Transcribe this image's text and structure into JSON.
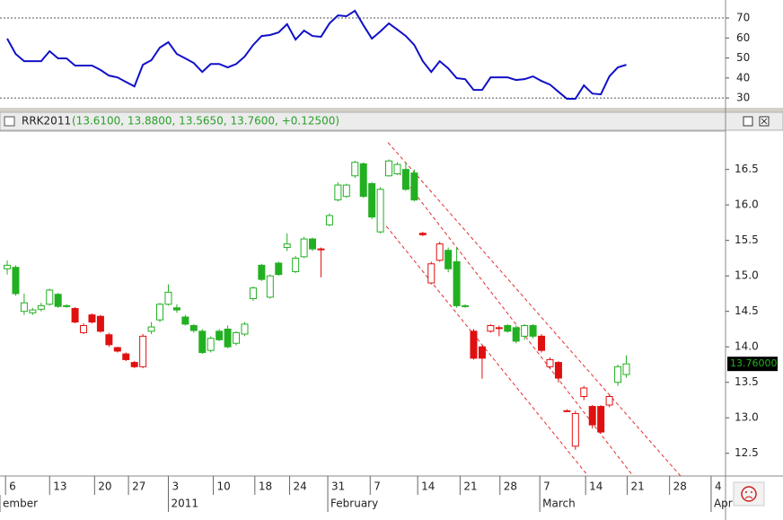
{
  "chart_data": [
    {
      "type": "line",
      "color": "#1010c8",
      "ylim": [
        25.1,
        79
      ],
      "yticks": [
        70,
        60,
        50,
        40,
        30
      ],
      "levels": [
        70,
        30
      ],
      "values": [
        59.7,
        52,
        48.4,
        48.4,
        48.4,
        53.4,
        49.8,
        49.8,
        46.2,
        46.2,
        46.2,
        44,
        41.2,
        40.3,
        38,
        35.8,
        46.6,
        48.9,
        55.2,
        57.9,
        52,
        49.8,
        47.5,
        43,
        47,
        47,
        45.3,
        47,
        50.7,
        56.5,
        61,
        61.5,
        62.8,
        66.9,
        59.2,
        63.7,
        61,
        60.6,
        67.3,
        71.3,
        70.9,
        73.6,
        66.4,
        59.7,
        63.3,
        67.3,
        64.2,
        61,
        56.5,
        48.4,
        43,
        48.4,
        44.8,
        39.9,
        39.4,
        34,
        34,
        40.3,
        40.3,
        40.3,
        39,
        39.4,
        40.8,
        38.5,
        36.7,
        33.1,
        29.6,
        29.6,
        36.3,
        32.2,
        31.8,
        40.8,
        45.3,
        46.6
      ]
    },
    {
      "type": "candlestick",
      "title": "RRK2011",
      "subtitle": "(13.6100, 13.8800, 13.5650, 13.7600, +0.12500)",
      "last_label": "13.76000",
      "colors": {
        "green": "#22b022",
        "red": "#e01010"
      },
      "channel_color": "#e03030",
      "xlim": [
        -0.85,
        84.7
      ],
      "ylim": [
        12.18,
        17.04
      ],
      "yticks": [
        16.5,
        {
          "value": 16,
          "label": "16.0"
        },
        15.5,
        {
          "value": 15,
          "label": "15.0"
        },
        14.5,
        {
          "value": 14,
          "label": "14.0"
        },
        13.5,
        {
          "value": 13,
          "label": "13.0"
        },
        12.5
      ],
      "xticks": [
        {
          "value": -0.2,
          "label": "6"
        },
        {
          "value": 5,
          "label": "13"
        },
        {
          "value": 10.3,
          "label": "20"
        },
        {
          "value": 14.3,
          "label": "27"
        },
        {
          "value": 19,
          "label": "3"
        },
        {
          "value": 24.3,
          "label": "10"
        },
        {
          "value": 29.2,
          "label": "18"
        },
        {
          "value": 33.3,
          "label": "24"
        },
        {
          "value": 37.8,
          "label": "31"
        },
        {
          "value": 42.8,
          "label": "7"
        },
        {
          "value": 48.4,
          "label": "14"
        },
        {
          "value": 53.4,
          "label": "21"
        },
        {
          "value": 58.1,
          "label": "28"
        },
        {
          "value": 62.8,
          "label": "7"
        },
        {
          "value": 68.2,
          "label": "14"
        },
        {
          "value": 73.1,
          "label": "21"
        },
        {
          "value": 78.1,
          "label": "28"
        },
        {
          "value": 83,
          "label": "4"
        }
      ],
      "month_labels": [
        {
          "value": -0.85,
          "label": "ember"
        },
        {
          "value": 19,
          "label": "2011"
        },
        {
          "value": 37.8,
          "label": "February"
        },
        {
          "value": 62.8,
          "label": "March"
        },
        {
          "value": 83,
          "label": "Apr"
        }
      ],
      "channel": [
        {
          "x1": 44.9,
          "y1": 16.88,
          "x2": 79.4,
          "y2": 12.18
        },
        {
          "x1": 45.7,
          "y1": 16.53,
          "x2": 73.8,
          "y2": 12.18
        },
        {
          "x1": 44.7,
          "y1": 15.7,
          "x2": 68.5,
          "y2": 12.18
        }
      ],
      "candles": [
        {
          "o": 15.1,
          "h": 15.22,
          "l": 15.02,
          "c": 15.15,
          "color": "green"
        },
        {
          "o": 15.12,
          "h": 15.15,
          "l": 14.72,
          "c": 14.75,
          "color": "green"
        },
        {
          "o": 14.5,
          "h": 14.75,
          "l": 14.45,
          "c": 14.62,
          "color": "green"
        },
        {
          "o": 14.48,
          "h": 14.55,
          "l": 14.45,
          "c": 14.52,
          "color": "green"
        },
        {
          "o": 14.53,
          "h": 14.62,
          "l": 14.5,
          "c": 14.58,
          "color": "green"
        },
        {
          "o": 14.6,
          "h": 14.82,
          "l": 14.58,
          "c": 14.8,
          "color": "green"
        },
        {
          "o": 14.74,
          "h": 14.76,
          "l": 14.55,
          "c": 14.57,
          "color": "green"
        },
        {
          "o": 14.58,
          "h": 14.6,
          "l": 14.55,
          "c": 14.57,
          "color": "green"
        },
        {
          "o": 14.54,
          "h": 14.56,
          "l": 14.33,
          "c": 14.35,
          "color": "red"
        },
        {
          "o": 14.2,
          "h": 14.33,
          "l": 14.18,
          "c": 14.3,
          "color": "red"
        },
        {
          "o": 14.45,
          "h": 14.47,
          "l": 14.33,
          "c": 14.35,
          "color": "red"
        },
        {
          "o": 14.43,
          "h": 14.45,
          "l": 14.2,
          "c": 14.22,
          "color": "red"
        },
        {
          "o": 14.17,
          "h": 14.2,
          "l": 14.0,
          "c": 14.03,
          "color": "red"
        },
        {
          "o": 13.99,
          "h": 14.0,
          "l": 13.92,
          "c": 13.94,
          "color": "red"
        },
        {
          "o": 13.9,
          "h": 13.92,
          "l": 13.8,
          "c": 13.82,
          "color": "red"
        },
        {
          "o": 13.78,
          "h": 13.8,
          "l": 13.7,
          "c": 13.72,
          "color": "red"
        },
        {
          "o": 13.72,
          "h": 14.18,
          "l": 13.7,
          "c": 14.15,
          "color": "red"
        },
        {
          "o": 14.22,
          "h": 14.35,
          "l": 14.18,
          "c": 14.28,
          "color": "green"
        },
        {
          "o": 14.38,
          "h": 14.62,
          "l": 14.35,
          "c": 14.6,
          "color": "green"
        },
        {
          "o": 14.6,
          "h": 14.88,
          "l": 14.58,
          "c": 14.77,
          "color": "green"
        },
        {
          "o": 14.55,
          "h": 14.6,
          "l": 14.48,
          "c": 14.52,
          "color": "green"
        },
        {
          "o": 14.42,
          "h": 14.45,
          "l": 14.3,
          "c": 14.32,
          "color": "green"
        },
        {
          "o": 14.3,
          "h": 14.32,
          "l": 14.2,
          "c": 14.23,
          "color": "green"
        },
        {
          "o": 14.22,
          "h": 14.25,
          "l": 13.9,
          "c": 13.92,
          "color": "green"
        },
        {
          "o": 13.95,
          "h": 14.15,
          "l": 13.92,
          "c": 14.12,
          "color": "green"
        },
        {
          "o": 14.22,
          "h": 14.25,
          "l": 14.08,
          "c": 14.1,
          "color": "green"
        },
        {
          "o": 14.25,
          "h": 14.3,
          "l": 13.98,
          "c": 14.0,
          "color": "green"
        },
        {
          "o": 14.05,
          "h": 14.22,
          "l": 14.02,
          "c": 14.2,
          "color": "green"
        },
        {
          "o": 14.18,
          "h": 14.35,
          "l": 14.15,
          "c": 14.32,
          "color": "green"
        },
        {
          "o": 14.68,
          "h": 14.85,
          "l": 14.65,
          "c": 14.83,
          "color": "green"
        },
        {
          "o": 15.15,
          "h": 15.17,
          "l": 14.93,
          "c": 14.95,
          "color": "green"
        },
        {
          "o": 14.7,
          "h": 15.02,
          "l": 14.68,
          "c": 15.0,
          "color": "green"
        },
        {
          "o": 15.18,
          "h": 15.2,
          "l": 15.0,
          "c": 15.02,
          "color": "green"
        },
        {
          "o": 15.4,
          "h": 15.6,
          "l": 15.35,
          "c": 15.45,
          "color": "green"
        },
        {
          "o": 15.06,
          "h": 15.28,
          "l": 15.04,
          "c": 15.25,
          "color": "green"
        },
        {
          "o": 15.27,
          "h": 15.55,
          "l": 15.25,
          "c": 15.52,
          "color": "green"
        },
        {
          "o": 15.52,
          "h": 15.54,
          "l": 15.35,
          "c": 15.38,
          "color": "green"
        },
        {
          "o": 15.38,
          "h": 15.4,
          "l": 14.98,
          "c": 15.38,
          "color": "red"
        },
        {
          "o": 15.72,
          "h": 15.88,
          "l": 15.7,
          "c": 15.85,
          "color": "green"
        },
        {
          "o": 16.07,
          "h": 16.32,
          "l": 16.05,
          "c": 16.28,
          "color": "green"
        },
        {
          "o": 16.12,
          "h": 16.3,
          "l": 16.1,
          "c": 16.28,
          "color": "green"
        },
        {
          "o": 16.41,
          "h": 16.62,
          "l": 16.38,
          "c": 16.6,
          "color": "green"
        },
        {
          "o": 16.58,
          "h": 16.6,
          "l": 16.1,
          "c": 16.12,
          "color": "green"
        },
        {
          "o": 16.3,
          "h": 16.32,
          "l": 15.8,
          "c": 15.83,
          "color": "green"
        },
        {
          "o": 15.62,
          "h": 16.25,
          "l": 15.6,
          "c": 16.22,
          "color": "green"
        },
        {
          "o": 16.41,
          "h": 16.64,
          "l": 16.4,
          "c": 16.62,
          "color": "green"
        },
        {
          "o": 16.44,
          "h": 16.6,
          "l": 16.42,
          "c": 16.57,
          "color": "green"
        },
        {
          "o": 16.5,
          "h": 16.6,
          "l": 16.2,
          "c": 16.22,
          "color": "green"
        },
        {
          "o": 16.45,
          "h": 16.5,
          "l": 16.05,
          "c": 16.07,
          "color": "green"
        },
        {
          "o": 15.6,
          "h": 15.62,
          "l": 15.56,
          "c": 15.58,
          "color": "red"
        },
        {
          "o": 14.9,
          "h": 15.2,
          "l": 14.88,
          "c": 15.17,
          "color": "red"
        },
        {
          "o": 15.22,
          "h": 15.48,
          "l": 15.2,
          "c": 15.45,
          "color": "red"
        },
        {
          "o": 15.36,
          "h": 15.4,
          "l": 15.05,
          "c": 15.1,
          "color": "green"
        },
        {
          "o": 15.2,
          "h": 15.4,
          "l": 14.55,
          "c": 14.58,
          "color": "green"
        },
        {
          "o": 14.58,
          "h": 14.6,
          "l": 14.55,
          "c": 14.57,
          "color": "green"
        },
        {
          "o": 14.22,
          "h": 14.25,
          "l": 13.82,
          "c": 13.84,
          "color": "red"
        },
        {
          "o": 14.0,
          "h": 14.02,
          "l": 13.55,
          "c": 13.84,
          "color": "red"
        },
        {
          "o": 14.22,
          "h": 14.32,
          "l": 14.2,
          "c": 14.3,
          "color": "red"
        },
        {
          "o": 14.27,
          "h": 14.3,
          "l": 14.15,
          "c": 14.26,
          "color": "red"
        },
        {
          "o": 14.3,
          "h": 14.32,
          "l": 14.2,
          "c": 14.22,
          "color": "green"
        },
        {
          "o": 14.27,
          "h": 14.3,
          "l": 14.05,
          "c": 14.08,
          "color": "green"
        },
        {
          "o": 14.15,
          "h": 14.32,
          "l": 14.1,
          "c": 14.3,
          "color": "green"
        },
        {
          "o": 14.3,
          "h": 14.32,
          "l": 14.12,
          "c": 14.15,
          "color": "green"
        },
        {
          "o": 14.15,
          "h": 14.18,
          "l": 13.92,
          "c": 13.95,
          "color": "red"
        },
        {
          "o": 13.72,
          "h": 13.85,
          "l": 13.7,
          "c": 13.82,
          "color": "red"
        },
        {
          "o": 13.78,
          "h": 13.8,
          "l": 13.5,
          "c": 13.56,
          "color": "red"
        },
        {
          "o": 13.1,
          "h": 13.12,
          "l": 13.08,
          "c": 13.1,
          "color": "red"
        },
        {
          "o": 12.6,
          "h": 13.1,
          "l": 12.55,
          "c": 13.06,
          "color": "red"
        },
        {
          "o": 13.3,
          "h": 13.45,
          "l": 13.25,
          "c": 13.42,
          "color": "red"
        },
        {
          "o": 13.16,
          "h": 13.18,
          "l": 12.85,
          "c": 12.9,
          "color": "red"
        },
        {
          "o": 13.16,
          "h": 13.18,
          "l": 12.78,
          "c": 12.8,
          "color": "red"
        },
        {
          "o": 13.18,
          "h": 13.32,
          "l": 13.15,
          "c": 13.3,
          "color": "red"
        },
        {
          "o": 13.5,
          "h": 13.75,
          "l": 13.45,
          "c": 13.72,
          "color": "green"
        },
        {
          "o": 13.61,
          "h": 13.88,
          "l": 13.565,
          "c": 13.76,
          "color": "green"
        }
      ]
    }
  ]
}
